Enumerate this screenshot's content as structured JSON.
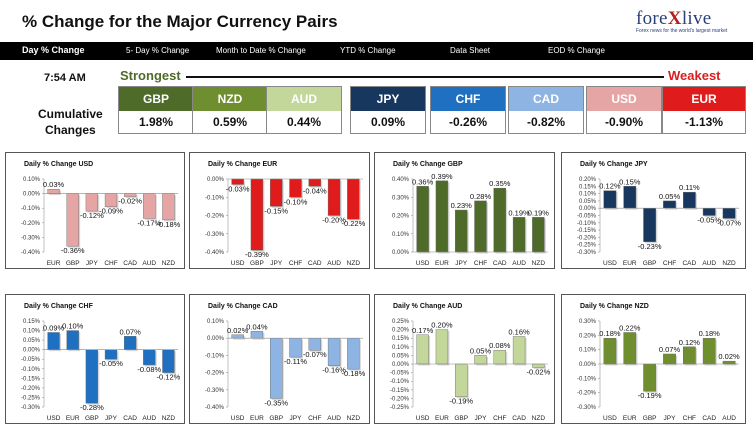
{
  "header": {
    "title": "% Change for the Major Currency Pairs"
  },
  "logo": {
    "text_a": "fore",
    "text_x": "X",
    "text_b": "live",
    "tagline": "Forex news for the world's largest market"
  },
  "nav": [
    {
      "label": "Day % Change",
      "active": true
    },
    {
      "label": "5- Day % Change"
    },
    {
      "label": "Month to Date % Change"
    },
    {
      "label": "YTD % Change"
    },
    {
      "label": "Data Sheet"
    },
    {
      "label": "EOD % Change"
    }
  ],
  "summary": {
    "time": "7:54 AM",
    "strongest_label": "Strongest",
    "weakest_label": "Weakest",
    "cumulative_label_1": "Cumulative",
    "cumulative_label_2": "Changes",
    "currencies": [
      {
        "code": "GBP",
        "value": "1.98%",
        "color": "#4f6b2a"
      },
      {
        "code": "NZD",
        "value": "0.59%",
        "color": "#6f8e2f"
      },
      {
        "code": "AUD",
        "value": "0.44%",
        "color": "#c3d79b"
      },
      {
        "code": "JPY",
        "value": "0.09%",
        "color": "#17375e"
      },
      {
        "code": "CHF",
        "value": "-0.26%",
        "color": "#1f70c1"
      },
      {
        "code": "CAD",
        "value": "-0.82%",
        "color": "#8eb4e3"
      },
      {
        "code": "USD",
        "value": "-0.90%",
        "color": "#e6a5a5"
      },
      {
        "code": "EUR",
        "value": "-1.13%",
        "color": "#e01b1b"
      }
    ]
  },
  "chart_data": [
    {
      "type": "bar",
      "title": "Daily % Change USD",
      "categories": [
        "EUR",
        "GBP",
        "JPY",
        "CHF",
        "CAD",
        "AUD",
        "NZD"
      ],
      "values": [
        0.03,
        -0.36,
        -0.12,
        -0.09,
        -0.02,
        -0.17,
        -0.18
      ],
      "value_labels": [
        "0.03%",
        "-0.36%",
        "-0.12%",
        "-0.09%",
        "-0.02%",
        "-0.17%",
        "-0.18%"
      ],
      "ylim": [
        -0.4,
        0.1
      ],
      "yticks": [
        0.1,
        0.0,
        -0.1,
        -0.2,
        -0.3,
        -0.4
      ],
      "ytick_labels": [
        "0.10%",
        "0.00%",
        "-0.10%",
        "-0.20%",
        "-0.30%",
        "-0.40%"
      ],
      "color": "#e6a5a5"
    },
    {
      "type": "bar",
      "title": "Daily % Change EUR",
      "categories": [
        "USD",
        "GBP",
        "JPY",
        "CHF",
        "CAD",
        "AUD",
        "NZD"
      ],
      "values": [
        -0.03,
        -0.39,
        -0.15,
        -0.1,
        -0.04,
        -0.2,
        -0.22
      ],
      "value_labels": [
        "-0.03%",
        "-0.39%",
        "-0.15%",
        "-0.10%",
        "-0.04%",
        "-0.20%",
        "-0.22%"
      ],
      "ylim": [
        -0.4,
        0.0
      ],
      "yticks": [
        0.0,
        -0.1,
        -0.2,
        -0.3,
        -0.4
      ],
      "ytick_labels": [
        "0.00%",
        "-0.10%",
        "-0.20%",
        "-0.30%",
        "-0.40%"
      ],
      "color": "#e01b1b"
    },
    {
      "type": "bar",
      "title": "Daily % Change GBP",
      "categories": [
        "USD",
        "EUR",
        "JPY",
        "CHF",
        "CAD",
        "AUD",
        "NZD"
      ],
      "values": [
        0.36,
        0.39,
        0.23,
        0.28,
        0.35,
        0.19,
        0.19
      ],
      "value_labels": [
        "0.36%",
        "0.39%",
        "0.23%",
        "0.28%",
        "0.35%",
        "0.19%",
        "0.19%"
      ],
      "ylim": [
        0.0,
        0.4
      ],
      "yticks": [
        0.4,
        0.3,
        0.2,
        0.1,
        0.0
      ],
      "ytick_labels": [
        "0.40%",
        "0.30%",
        "0.20%",
        "0.10%",
        "0.00%"
      ],
      "color": "#4f6b2a"
    },
    {
      "type": "bar",
      "title": "Daily % Change JPY",
      "categories": [
        "USD",
        "EUR",
        "GBP",
        "CHF",
        "CAD",
        "AUD",
        "NZD"
      ],
      "values": [
        0.12,
        0.15,
        -0.23,
        0.05,
        0.11,
        -0.05,
        -0.07
      ],
      "value_labels": [
        "0.12%",
        "0.15%",
        "-0.23%",
        "0.05%",
        "0.11%",
        "-0.05%",
        "-0.07%"
      ],
      "ylim": [
        -0.3,
        0.2
      ],
      "yticks": [
        0.2,
        0.15,
        0.1,
        0.05,
        0.0,
        -0.05,
        -0.1,
        -0.15,
        -0.2,
        -0.25,
        -0.3
      ],
      "ytick_labels": [
        "0.20%",
        "0.15%",
        "0.10%",
        "0.05%",
        "0.00%",
        "-0.05%",
        "-0.10%",
        "-0.15%",
        "-0.20%",
        "-0.25%",
        "-0.30%"
      ],
      "color": "#17375e"
    },
    {
      "type": "bar",
      "title": "Daily % Change CHF",
      "categories": [
        "USD",
        "EUR",
        "GBP",
        "JPY",
        "CAD",
        "AUD",
        "NZD"
      ],
      "values": [
        0.09,
        0.1,
        -0.28,
        -0.05,
        0.07,
        -0.08,
        -0.12
      ],
      "value_labels": [
        "0.09%",
        "0.10%",
        "-0.28%",
        "-0.05%",
        "0.07%",
        "-0.08%",
        "-0.12%"
      ],
      "ylim": [
        -0.3,
        0.15
      ],
      "yticks": [
        0.15,
        0.1,
        0.05,
        0.0,
        -0.05,
        -0.1,
        -0.15,
        -0.2,
        -0.25,
        -0.3
      ],
      "ytick_labels": [
        "0.15%",
        "0.10%",
        "0.05%",
        "0.00%",
        "-0.05%",
        "-0.10%",
        "-0.15%",
        "-0.20%",
        "-0.25%",
        "-0.30%"
      ],
      "color": "#1f70c1"
    },
    {
      "type": "bar",
      "title": "Daily % Change CAD",
      "categories": [
        "USD",
        "EUR",
        "GBP",
        "JPY",
        "CHF",
        "AUD",
        "NZD"
      ],
      "values": [
        0.02,
        0.04,
        -0.35,
        -0.11,
        -0.07,
        -0.16,
        -0.18
      ],
      "value_labels": [
        "0.02%",
        "0.04%",
        "-0.35%",
        "-0.11%",
        "-0.07%",
        "-0.16%",
        "-0.18%"
      ],
      "ylim": [
        -0.4,
        0.1
      ],
      "yticks": [
        0.1,
        0.0,
        -0.1,
        -0.2,
        -0.3,
        -0.4
      ],
      "ytick_labels": [
        "0.10%",
        "0.00%",
        "-0.10%",
        "-0.20%",
        "-0.30%",
        "-0.40%"
      ],
      "color": "#8eb4e3"
    },
    {
      "type": "bar",
      "title": "Daily % Change AUD",
      "categories": [
        "USD",
        "EUR",
        "GBP",
        "JPY",
        "CHF",
        "CAD",
        "NZD"
      ],
      "values": [
        0.17,
        0.2,
        -0.19,
        0.05,
        0.08,
        0.16,
        -0.02
      ],
      "value_labels": [
        "0.17%",
        "0.20%",
        "-0.19%",
        "0.05%",
        "0.08%",
        "0.16%",
        "-0.02%"
      ],
      "ylim": [
        -0.25,
        0.25
      ],
      "yticks": [
        0.25,
        0.2,
        0.15,
        0.1,
        0.05,
        0.0,
        -0.05,
        -0.1,
        -0.15,
        -0.2,
        -0.25
      ],
      "ytick_labels": [
        "0.25%",
        "0.20%",
        "0.15%",
        "0.10%",
        "0.05%",
        "0.00%",
        "-0.05%",
        "-0.10%",
        "-0.15%",
        "-0.20%",
        "-0.25%"
      ],
      "color": "#c3d79b"
    },
    {
      "type": "bar",
      "title": "Daily % Change NZD",
      "categories": [
        "USD",
        "EUR",
        "GBP",
        "JPY",
        "CHF",
        "CAD",
        "AUD"
      ],
      "values": [
        0.18,
        0.22,
        -0.19,
        0.07,
        0.12,
        0.18,
        0.02
      ],
      "value_labels": [
        "0.18%",
        "0.22%",
        "-0.19%",
        "0.07%",
        "0.12%",
        "0.18%",
        "0.02%"
      ],
      "ylim": [
        -0.3,
        0.3
      ],
      "yticks": [
        0.3,
        0.2,
        0.1,
        0.0,
        -0.1,
        -0.2,
        -0.3
      ],
      "ytick_labels": [
        "0.30%",
        "0.20%",
        "0.10%",
        "0.00%",
        "-0.10%",
        "-0.20%",
        "-0.30%"
      ],
      "color": "#6f8e2f"
    }
  ]
}
